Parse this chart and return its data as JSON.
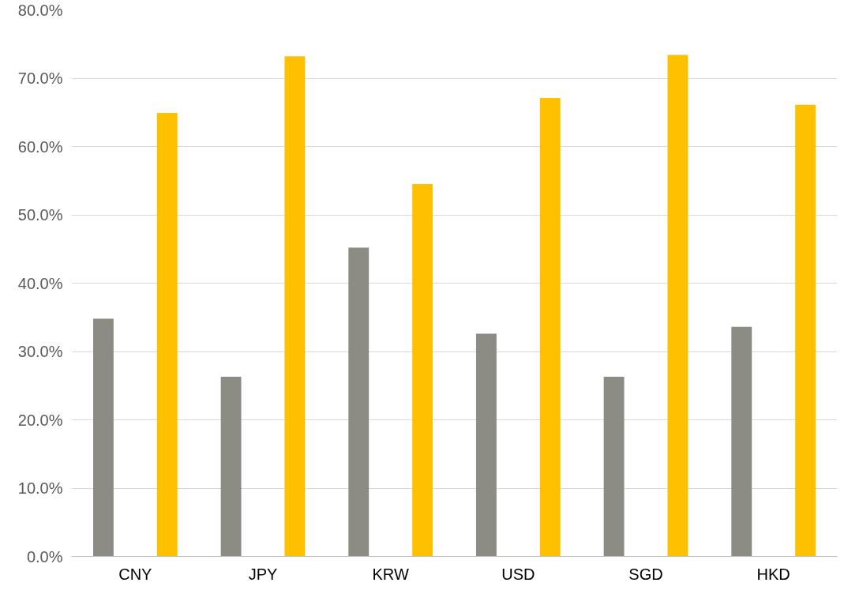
{
  "chart_data": {
    "type": "bar",
    "categories": [
      "CNY",
      "JPY",
      "KRW",
      "USD",
      "SGD",
      "HKD"
    ],
    "series": [
      {
        "color": "#8c8c85",
        "values": [
          34.8,
          26.3,
          45.2,
          32.6,
          26.3,
          33.6
        ]
      },
      {
        "color": "#ffc000",
        "values": [
          64.9,
          73.2,
          54.5,
          67.1,
          73.4,
          66.1
        ]
      }
    ],
    "ylim": [
      0,
      80
    ],
    "yticks": [
      {
        "value": 0,
        "label": "0.0%"
      },
      {
        "value": 10,
        "label": "10.0%"
      },
      {
        "value": 20,
        "label": "20.0%"
      },
      {
        "value": 30,
        "label": "30.0%"
      },
      {
        "value": 40,
        "label": "40.0%"
      },
      {
        "value": 50,
        "label": "50.0%"
      },
      {
        "value": 60,
        "label": "60.0%"
      },
      {
        "value": 70,
        "label": "70.0%"
      },
      {
        "value": 80,
        "label": "80.0%"
      }
    ],
    "grid": "y"
  }
}
